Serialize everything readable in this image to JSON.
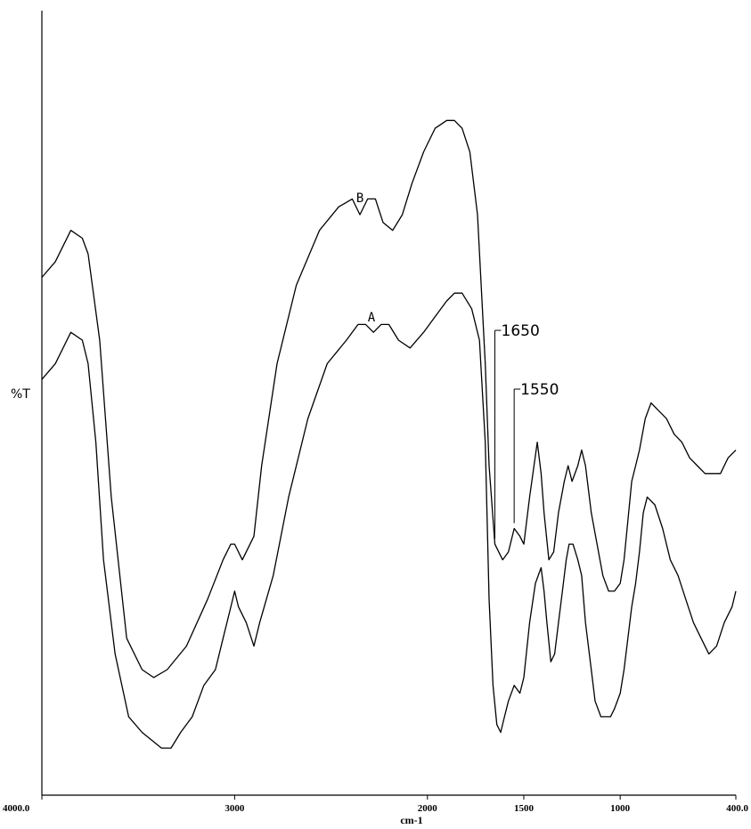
{
  "chart_data": {
    "type": "line",
    "title": "",
    "xlabel": "cm-1",
    "ylabel": "%T",
    "xlim": [
      4000,
      400
    ],
    "ylim": [
      0,
      100
    ],
    "x_reversed": true,
    "grid": false,
    "x_ticks": [
      {
        "value": 4000,
        "label": "4000.0"
      },
      {
        "value": 3000,
        "label": "3000"
      },
      {
        "value": 2000,
        "label": "2000"
      },
      {
        "value": 1500,
        "label": "1500"
      },
      {
        "value": 1000,
        "label": "1000"
      },
      {
        "value": 400,
        "label": "400.0"
      }
    ],
    "series": [
      {
        "name": "B",
        "color": "#000000",
        "x": [
          4000,
          3930,
          3850,
          3790,
          3760,
          3700,
          3640,
          3560,
          3480,
          3420,
          3350,
          3250,
          3140,
          3060,
          3020,
          3000,
          2960,
          2900,
          2860,
          2780,
          2680,
          2560,
          2460,
          2390,
          2350,
          2310,
          2270,
          2230,
          2180,
          2130,
          2080,
          2020,
          1960,
          1900,
          1860,
          1820,
          1780,
          1740,
          1700,
          1680,
          1650,
          1610,
          1580,
          1550,
          1520,
          1500,
          1470,
          1430,
          1410,
          1395,
          1370,
          1345,
          1320,
          1290,
          1270,
          1250,
          1220,
          1200,
          1180,
          1150,
          1120,
          1090,
          1060,
          1030,
          1000,
          980,
          960,
          940,
          920,
          900,
          870,
          840,
          800,
          760,
          720,
          680,
          640,
          600,
          560,
          520,
          480,
          440,
          400
        ],
        "values": [
          66,
          68,
          72,
          71,
          69,
          58,
          38,
          20,
          16,
          15,
          16,
          19,
          25,
          30,
          32,
          32,
          30,
          33,
          42,
          55,
          65,
          72,
          75,
          76,
          74,
          76,
          76,
          73,
          72,
          74,
          78,
          82,
          85,
          86,
          86,
          85,
          82,
          74,
          55,
          42,
          32,
          30,
          31,
          34,
          33,
          32,
          38,
          45,
          41,
          36,
          30,
          31,
          36,
          40,
          42,
          40,
          42,
          44,
          42,
          36,
          32,
          28,
          26,
          26,
          27,
          30,
          35,
          40,
          42,
          44,
          48,
          50,
          49,
          48,
          46,
          45,
          43,
          42,
          41,
          41,
          41,
          43,
          44
        ]
      },
      {
        "name": "A",
        "color": "#000000",
        "x": [
          4000,
          3930,
          3850,
          3790,
          3760,
          3720,
          3680,
          3620,
          3550,
          3480,
          3430,
          3380,
          3330,
          3280,
          3220,
          3160,
          3100,
          3060,
          3020,
          3000,
          2980,
          2940,
          2900,
          2870,
          2800,
          2720,
          2620,
          2520,
          2420,
          2360,
          2320,
          2280,
          2240,
          2200,
          2150,
          2090,
          2020,
          1960,
          1900,
          1860,
          1820,
          1770,
          1730,
          1700,
          1680,
          1660,
          1640,
          1620,
          1600,
          1580,
          1550,
          1520,
          1500,
          1470,
          1440,
          1410,
          1395,
          1380,
          1360,
          1340,
          1320,
          1300,
          1280,
          1265,
          1245,
          1220,
          1200,
          1180,
          1150,
          1130,
          1100,
          1070,
          1050,
          1030,
          1000,
          980,
          960,
          940,
          920,
          900,
          880,
          860,
          820,
          780,
          740,
          700,
          660,
          620,
          580,
          540,
          500,
          460,
          420,
          400
        ],
        "values": [
          53,
          55,
          59,
          58,
          55,
          45,
          30,
          18,
          10,
          8,
          7,
          6,
          6,
          8,
          10,
          14,
          16,
          20,
          24,
          26,
          24,
          22,
          19,
          22,
          28,
          38,
          48,
          55,
          58,
          60,
          60,
          59,
          60,
          60,
          58,
          57,
          59,
          61,
          63,
          64,
          64,
          62,
          58,
          45,
          25,
          14,
          9,
          8,
          10,
          12,
          14,
          13,
          15,
          22,
          27,
          29,
          26,
          22,
          17,
          18,
          22,
          26,
          30,
          32,
          32,
          30,
          28,
          22,
          16,
          12,
          10,
          10,
          10,
          11,
          13,
          16,
          20,
          24,
          27,
          31,
          36,
          38,
          37,
          34,
          30,
          28,
          25,
          22,
          20,
          18,
          19,
          22,
          24,
          26
        ]
      }
    ],
    "annotations": [
      {
        "label": "1650",
        "x": 1650
      },
      {
        "label": "1550",
        "x": 1550
      }
    ]
  }
}
